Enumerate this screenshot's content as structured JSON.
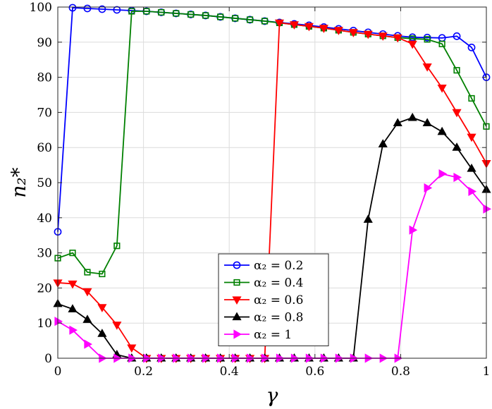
{
  "chart_data": {
    "type": "line",
    "xlabel": "γ",
    "ylabel": "n₂*",
    "xlim": [
      0,
      1
    ],
    "ylim": [
      0,
      100
    ],
    "xticks": [
      0,
      0.2,
      0.4,
      0.6,
      0.8,
      1
    ],
    "yticks": [
      0,
      10,
      20,
      30,
      40,
      50,
      60,
      70,
      80,
      90,
      100
    ],
    "xtick_labels": [
      "0",
      "0.2",
      "0.4",
      "0.6",
      "0.8",
      "1"
    ],
    "ytick_labels": [
      "0",
      "10",
      "20",
      "30",
      "40",
      "50",
      "60",
      "70",
      "80",
      "90",
      "100"
    ],
    "grid": true,
    "legend_position": "bottom-center",
    "x": [
      0,
      0.0345,
      0.069,
      0.1034,
      0.1379,
      0.1724,
      0.2069,
      0.2414,
      0.2759,
      0.3103,
      0.3448,
      0.3793,
      0.4138,
      0.4483,
      0.4828,
      0.5172,
      0.5517,
      0.5862,
      0.6207,
      0.6552,
      0.6897,
      0.7241,
      0.7586,
      0.7931,
      0.8276,
      0.8621,
      0.8966,
      0.931,
      0.9655,
      1
    ],
    "series": [
      {
        "name": "α₂ = 0.2",
        "color": "#0000ff",
        "marker": "circle",
        "values": [
          36,
          99.8,
          99.6,
          99.4,
          99.2,
          99,
          98.8,
          98.5,
          98.2,
          97.9,
          97.6,
          97.2,
          96.8,
          96.4,
          96,
          95.6,
          95.2,
          94.8,
          94.3,
          93.8,
          93.3,
          92.8,
          92.3,
          91.8,
          91.4,
          91.3,
          91.2,
          91.7,
          88.5,
          80
        ]
      },
      {
        "name": "α₂ = 0.4",
        "color": "#008000",
        "marker": "square",
        "values": [
          28.5,
          30,
          24.5,
          24,
          32,
          98.8,
          98.8,
          98.5,
          98.2,
          97.9,
          97.6,
          97.2,
          96.8,
          96.4,
          96,
          95.5,
          95,
          94.5,
          94,
          93.4,
          92.8,
          92.3,
          91.8,
          91.3,
          91,
          90.8,
          89.5,
          82,
          74,
          66
        ]
      },
      {
        "name": "α₂ = 0.6",
        "color": "#ff0000",
        "marker": "triangle-down",
        "values": [
          21.5,
          21.2,
          19,
          14.5,
          9.5,
          3,
          0,
          0,
          0,
          0,
          0,
          0,
          0,
          0,
          0,
          95.5,
          95,
          94.5,
          94,
          93.4,
          92.8,
          92.3,
          91.8,
          91.3,
          89.5,
          83,
          77,
          70,
          63,
          55.5
        ]
      },
      {
        "name": "α₂ = 0.8",
        "color": "#000000",
        "marker": "triangle-up",
        "values": [
          15.5,
          14,
          11,
          7,
          1,
          0,
          0,
          0,
          0,
          0,
          0,
          0,
          0,
          0,
          0,
          0,
          0,
          0,
          0,
          0,
          0,
          39.5,
          61,
          67,
          68.5,
          67,
          64.5,
          60,
          54,
          48
        ]
      },
      {
        "name": "α₂ = 1",
        "color": "#ff00ff",
        "marker": "triangle-right",
        "values": [
          10.5,
          8,
          4,
          0,
          0,
          0,
          0,
          0,
          0,
          0,
          0,
          0,
          0,
          0,
          0,
          0,
          0,
          0,
          0,
          0,
          0,
          0,
          0,
          0,
          36.5,
          48.5,
          52.5,
          51.5,
          47.5,
          42.5
        ]
      }
    ]
  }
}
